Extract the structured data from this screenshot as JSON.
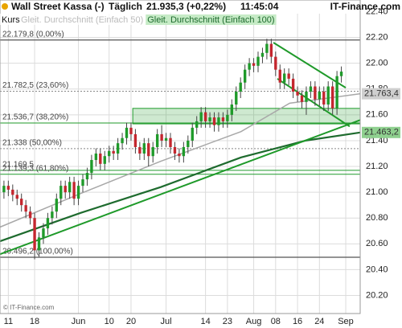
{
  "chart_data": {
    "type": "candlestick",
    "title": "Wall Street Kassa (-)",
    "interval": "Täglich",
    "last_price": "21.935,3 (+0,22%)",
    "time": "11:45:04",
    "brand": "IT-Finance.com",
    "watermark": "© IT-Finance.com",
    "legend": [
      "Kurs",
      "Gleit. Durchschnitt (Einfach 50)",
      "Gleit. Durchschnitt (Einfach 100)"
    ],
    "up_color": "#1f9a2a",
    "down_color": "#c4262e",
    "xlim": [
      -0.9,
      81.3
    ],
    "ylim": [
      20.06,
      22.49
    ],
    "xticks": [
      {
        "value": 1,
        "label": "11"
      },
      {
        "value": 7,
        "label": "18"
      },
      {
        "value": 17,
        "label": "Jun"
      },
      {
        "value": 24,
        "label": "10"
      },
      {
        "value": 29,
        "label": "20"
      },
      {
        "value": 37,
        "label": "Jul"
      },
      {
        "value": 46,
        "label": "14"
      },
      {
        "value": 51,
        "label": "23"
      },
      {
        "value": 57,
        "label": "Aug"
      },
      {
        "value": 62,
        "label": "08"
      },
      {
        "value": 67,
        "label": "16"
      },
      {
        "value": 72,
        "label": "24"
      },
      {
        "value": 78,
        "label": "Sep"
      }
    ],
    "yticks": [
      {
        "value": 20.2,
        "label": "20.20"
      },
      {
        "value": 20.4,
        "label": "20.40"
      },
      {
        "value": 20.6,
        "label": "20.60"
      },
      {
        "value": 20.8,
        "label": "20.80"
      },
      {
        "value": 21.0,
        "label": "21.00"
      },
      {
        "value": 21.2,
        "label": "21.20"
      },
      {
        "value": 21.4,
        "label": "21.40"
      },
      {
        "value": 21.6,
        "label": "21.60"
      },
      {
        "value": 21.8,
        "label": "21.80"
      },
      {
        "value": 22.0,
        "label": "22.00"
      },
      {
        "value": 22.2,
        "label": "22.20"
      },
      {
        "value": 22.4,
        "label": "22.40"
      }
    ],
    "open": [
      21.0,
      21.05,
      21.02,
      20.98,
      20.95,
      20.9,
      20.85,
      20.8,
      20.55,
      20.65,
      20.72,
      20.8,
      20.85,
      20.95,
      21.05,
      21.0,
      21.08,
      20.95,
      21.05,
      21.1,
      21.15,
      21.25,
      21.3,
      21.22,
      21.28,
      21.32,
      21.3,
      21.38,
      21.42,
      21.5,
      21.45,
      21.35,
      21.3,
      21.38,
      21.28,
      21.35,
      21.45,
      21.4,
      21.42,
      21.35,
      21.3,
      21.28,
      21.35,
      21.4,
      21.5,
      21.55,
      21.62,
      21.55,
      21.58,
      21.52,
      21.58,
      21.55,
      21.6,
      21.68,
      21.78,
      21.85,
      21.95,
      22.0,
      21.98,
      22.05,
      22.08,
      22.15,
      22.05,
      21.95,
      21.85,
      21.92,
      21.88,
      21.78,
      21.75,
      21.7,
      21.78,
      21.82,
      21.72,
      21.78,
      21.68,
      21.82,
      21.65,
      21.9
    ],
    "close": [
      21.05,
      21.02,
      20.98,
      20.95,
      20.9,
      20.85,
      20.8,
      20.55,
      20.65,
      20.72,
      20.8,
      20.85,
      20.95,
      21.05,
      21.0,
      21.08,
      20.95,
      21.05,
      21.1,
      21.15,
      21.25,
      21.3,
      21.22,
      21.28,
      21.32,
      21.3,
      21.38,
      21.42,
      21.5,
      21.45,
      21.35,
      21.3,
      21.38,
      21.28,
      21.35,
      21.45,
      21.4,
      21.42,
      21.35,
      21.3,
      21.28,
      21.35,
      21.4,
      21.5,
      21.55,
      21.62,
      21.55,
      21.58,
      21.52,
      21.58,
      21.55,
      21.6,
      21.68,
      21.78,
      21.85,
      21.95,
      22.0,
      21.98,
      22.05,
      22.08,
      22.15,
      22.05,
      21.95,
      21.85,
      21.92,
      21.88,
      21.78,
      21.75,
      21.7,
      21.78,
      21.82,
      21.72,
      21.78,
      21.68,
      21.82,
      21.65,
      21.9,
      21.935
    ],
    "high": [
      21.09,
      21.09,
      21.06,
      21.02,
      20.99,
      20.94,
      20.89,
      20.84,
      20.69,
      20.76,
      20.84,
      20.89,
      20.99,
      21.09,
      21.09,
      21.12,
      21.12,
      21.09,
      21.14,
      21.19,
      21.29,
      21.34,
      21.34,
      21.32,
      21.36,
      21.36,
      21.42,
      21.46,
      21.54,
      21.54,
      21.49,
      21.39,
      21.42,
      21.42,
      21.39,
      21.49,
      21.52,
      21.46,
      21.46,
      21.39,
      21.34,
      21.39,
      21.44,
      21.54,
      21.59,
      21.66,
      21.66,
      21.62,
      21.62,
      21.62,
      21.62,
      21.64,
      21.72,
      21.82,
      21.89,
      21.99,
      22.04,
      22.04,
      22.09,
      22.12,
      22.19,
      22.19,
      22.09,
      21.99,
      21.96,
      21.96,
      21.92,
      21.82,
      21.79,
      21.82,
      21.86,
      21.86,
      21.82,
      21.82,
      21.86,
      21.86,
      21.94,
      21.975
    ],
    "low": [
      20.95,
      20.97,
      20.93,
      20.9,
      20.85,
      20.8,
      20.75,
      20.48,
      20.5,
      20.6,
      20.67,
      20.75,
      20.8,
      20.9,
      20.95,
      20.95,
      20.9,
      20.9,
      21.0,
      21.05,
      21.1,
      21.2,
      21.17,
      21.17,
      21.23,
      21.25,
      21.25,
      21.33,
      21.37,
      21.4,
      21.3,
      21.25,
      21.25,
      21.2,
      21.23,
      21.3,
      21.35,
      21.35,
      21.3,
      21.25,
      21.23,
      21.23,
      21.3,
      21.35,
      21.45,
      21.5,
      21.5,
      21.5,
      21.47,
      21.47,
      21.5,
      21.5,
      21.55,
      21.63,
      21.73,
      21.8,
      21.9,
      21.93,
      21.93,
      22.0,
      22.03,
      22.0,
      21.9,
      21.8,
      21.8,
      21.83,
      21.73,
      21.7,
      21.65,
      21.6,
      21.73,
      21.67,
      21.67,
      21.63,
      21.63,
      21.6,
      21.6,
      21.85
    ],
    "series": [
      {
        "name": "Gleit. Durchschnitt (Einfach 50)",
        "color": "#a8a8a8",
        "x": [
          -0.9,
          17.5,
          35.8,
          54.1,
          65.2,
          81.3
        ],
        "values": [
          20.73,
          20.99,
          21.24,
          21.47,
          21.69,
          21.7634
        ]
      },
      {
        "name": "Gleit. Durchschnitt (Einfach 100)",
        "color": "#1e6b2e",
        "x": [
          -0.9,
          17.5,
          35.8,
          54.1,
          68.8,
          81.3
        ],
        "values": [
          20.62,
          20.84,
          21.04,
          21.27,
          21.4,
          21.4632
        ]
      }
    ],
    "trendlines": [
      {
        "color": "#1f9a2a",
        "x": [
          -0.9,
          81.3
        ],
        "values": [
          20.52,
          21.56
        ]
      },
      {
        "color": "#1f9a2a",
        "x": [
          61.5,
          78.0
        ],
        "values": [
          22.16,
          21.81
        ]
      },
      {
        "color": "#1f9a2a",
        "x": [
          62.4,
          78.9
        ],
        "values": [
          21.88,
          21.51
        ]
      }
    ],
    "zone": {
      "x": [
        29.4,
        81.3
      ],
      "values": [
        21.53,
        21.65
      ],
      "color": "#1f9a2a"
    },
    "levels": [
      {
        "value": 22.1798,
        "label": "22.179,8 (0,00%)",
        "color": "#555"
      },
      {
        "value": 21.7825,
        "label": "21.782,5 (23,60%)",
        "color": "#888"
      },
      {
        "value": 21.5367,
        "label": "21.536,7 (38,20%)",
        "color": "#1f9a2a"
      },
      {
        "value": 21.338,
        "label": "21.338 (50,00%)",
        "color": "#888"
      },
      {
        "value": 21.1695,
        "label": "21.169,5",
        "color": "#1f9a2a"
      },
      {
        "value": 21.1393,
        "label": "21.139,3 (61,80%)",
        "color": "#1f9a2a"
      },
      {
        "value": 20.4962,
        "label": "20.496,2 (100,00%)",
        "color": "#555"
      }
    ],
    "right_markers": [
      {
        "value": 21.7634,
        "label": "21.763,4",
        "color": "#cfcfcf"
      },
      {
        "value": 21.4632,
        "label": "21.463,2",
        "color": "#8fd08f"
      }
    ]
  }
}
